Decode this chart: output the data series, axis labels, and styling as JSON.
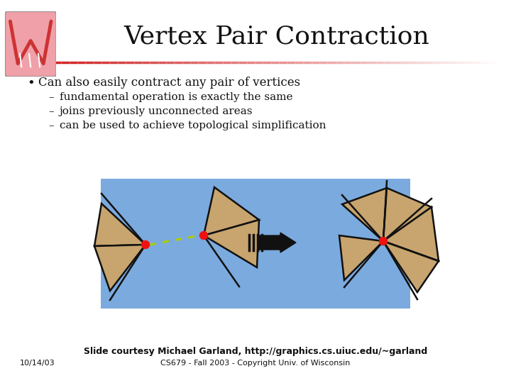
{
  "title": "Vertex Pair Contraction",
  "bg_color": "#ffffff",
  "title_fontsize": 26,
  "title_font": "serif",
  "bullet_text": "Can also easily contract any pair of vertices",
  "sub_bullets": [
    "fundamental operation is exactly the same",
    "joins previously unconnected areas",
    "can be used to achieve topological simplification"
  ],
  "diagram_bg": "#7baade",
  "tan_color": "#c8a46e",
  "line_color": "#111111",
  "dot_color": "#ee1111",
  "dashed_color": "#aacc00",
  "footer1": "Slide courtesy Michael Garland, http://graphics.cs.uiuc.edu/~garland",
  "footer2": "CS679 - Fall 2003 - Copyright Univ. of Wisconsin",
  "footer_date": "10/14/03",
  "sep_color_left": "#cc1111",
  "sep_color_right": "#ffffff"
}
